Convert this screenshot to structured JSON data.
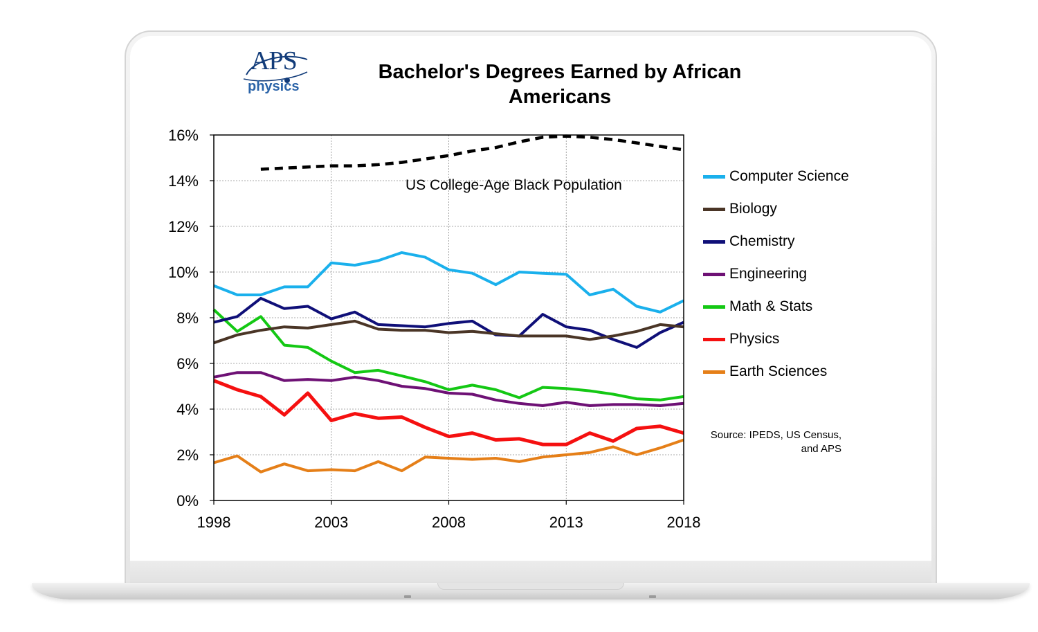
{
  "logo": {
    "word": "APS",
    "sub": "physics"
  },
  "chart_data": {
    "type": "line",
    "title": "Bachelor's Degrees Earned by African Americans",
    "ylim": [
      0,
      16
    ],
    "xlim": [
      1998,
      2018
    ],
    "yticks": [
      0,
      2,
      4,
      6,
      8,
      10,
      12,
      14,
      16
    ],
    "ytick_labels": [
      "0%",
      "2%",
      "4%",
      "6%",
      "8%",
      "10%",
      "12%",
      "14%",
      "16%"
    ],
    "xticks": [
      1998,
      2003,
      2008,
      2013,
      2018
    ],
    "xtick_labels": [
      "1998",
      "2003",
      "2008",
      "2013",
      "2018"
    ],
    "grid": true,
    "legend_position": "right",
    "x": [
      1998,
      1999,
      2000,
      2001,
      2002,
      2003,
      2004,
      2005,
      2006,
      2007,
      2008,
      2009,
      2010,
      2011,
      2012,
      2013,
      2014,
      2015,
      2016,
      2017,
      2018
    ],
    "series": [
      {
        "name": "Computer Science",
        "color": "#1ab0ec",
        "values": [
          9.4,
          9.0,
          9.0,
          9.35,
          9.35,
          10.4,
          10.3,
          10.5,
          10.85,
          10.65,
          10.1,
          9.95,
          9.45,
          10.0,
          9.95,
          9.9,
          9.0,
          9.25,
          8.5,
          8.25,
          8.75
        ]
      },
      {
        "name": "Biology",
        "color": "#4a3526",
        "values": [
          6.9,
          7.25,
          7.45,
          7.6,
          7.55,
          7.7,
          7.85,
          7.5,
          7.45,
          7.45,
          7.35,
          7.4,
          7.3,
          7.2,
          7.2,
          7.2,
          7.05,
          7.2,
          7.4,
          7.7,
          7.6
        ]
      },
      {
        "name": "Chemistry",
        "color": "#0f0f78",
        "values": [
          7.8,
          8.05,
          8.85,
          8.4,
          8.5,
          7.95,
          8.25,
          7.7,
          7.65,
          7.6,
          7.75,
          7.85,
          7.25,
          7.2,
          8.15,
          7.6,
          7.45,
          7.05,
          6.7,
          7.35,
          7.8
        ]
      },
      {
        "name": "Engineering",
        "color": "#6e1175",
        "values": [
          5.4,
          5.6,
          5.6,
          5.25,
          5.3,
          5.25,
          5.4,
          5.25,
          5.0,
          4.9,
          4.7,
          4.65,
          4.4,
          4.25,
          4.15,
          4.3,
          4.15,
          4.2,
          4.2,
          4.15,
          4.25
        ]
      },
      {
        "name": "Math & Stats",
        "color": "#14c814",
        "values": [
          8.35,
          7.4,
          8.05,
          6.8,
          6.7,
          6.1,
          5.6,
          5.7,
          5.45,
          5.2,
          4.85,
          5.05,
          4.85,
          4.5,
          4.95,
          4.9,
          4.8,
          4.65,
          4.45,
          4.4,
          4.55
        ]
      },
      {
        "name": "Physics",
        "color": "#f51010",
        "values": [
          5.25,
          4.85,
          4.55,
          3.75,
          4.7,
          3.5,
          3.8,
          3.6,
          3.65,
          3.2,
          2.8,
          2.95,
          2.65,
          2.7,
          2.45,
          2.45,
          2.95,
          2.6,
          3.15,
          3.25,
          2.95
        ]
      },
      {
        "name": "Earth Sciences",
        "color": "#e57f18",
        "values": [
          1.65,
          1.95,
          1.25,
          1.6,
          1.3,
          1.35,
          1.3,
          1.7,
          1.3,
          1.9,
          1.85,
          1.8,
          1.85,
          1.7,
          1.9,
          2.0,
          2.1,
          2.35,
          2.0,
          2.3,
          2.65
        ]
      }
    ],
    "reference_line": {
      "label": "US College-Age  Black Population",
      "style": "dashed",
      "color": "#000000",
      "x": [
        2000,
        2001,
        2002,
        2003,
        2004,
        2005,
        2006,
        2007,
        2008,
        2009,
        2010,
        2011,
        2012,
        2013,
        2014,
        2015,
        2016,
        2017,
        2018
      ],
      "values": [
        14.5,
        14.55,
        14.6,
        14.65,
        14.65,
        14.7,
        14.8,
        14.95,
        15.1,
        15.3,
        15.45,
        15.7,
        15.9,
        15.95,
        15.9,
        15.8,
        15.65,
        15.5,
        15.35
      ]
    },
    "source": "Source: IPEDS, US Census, and APS"
  }
}
